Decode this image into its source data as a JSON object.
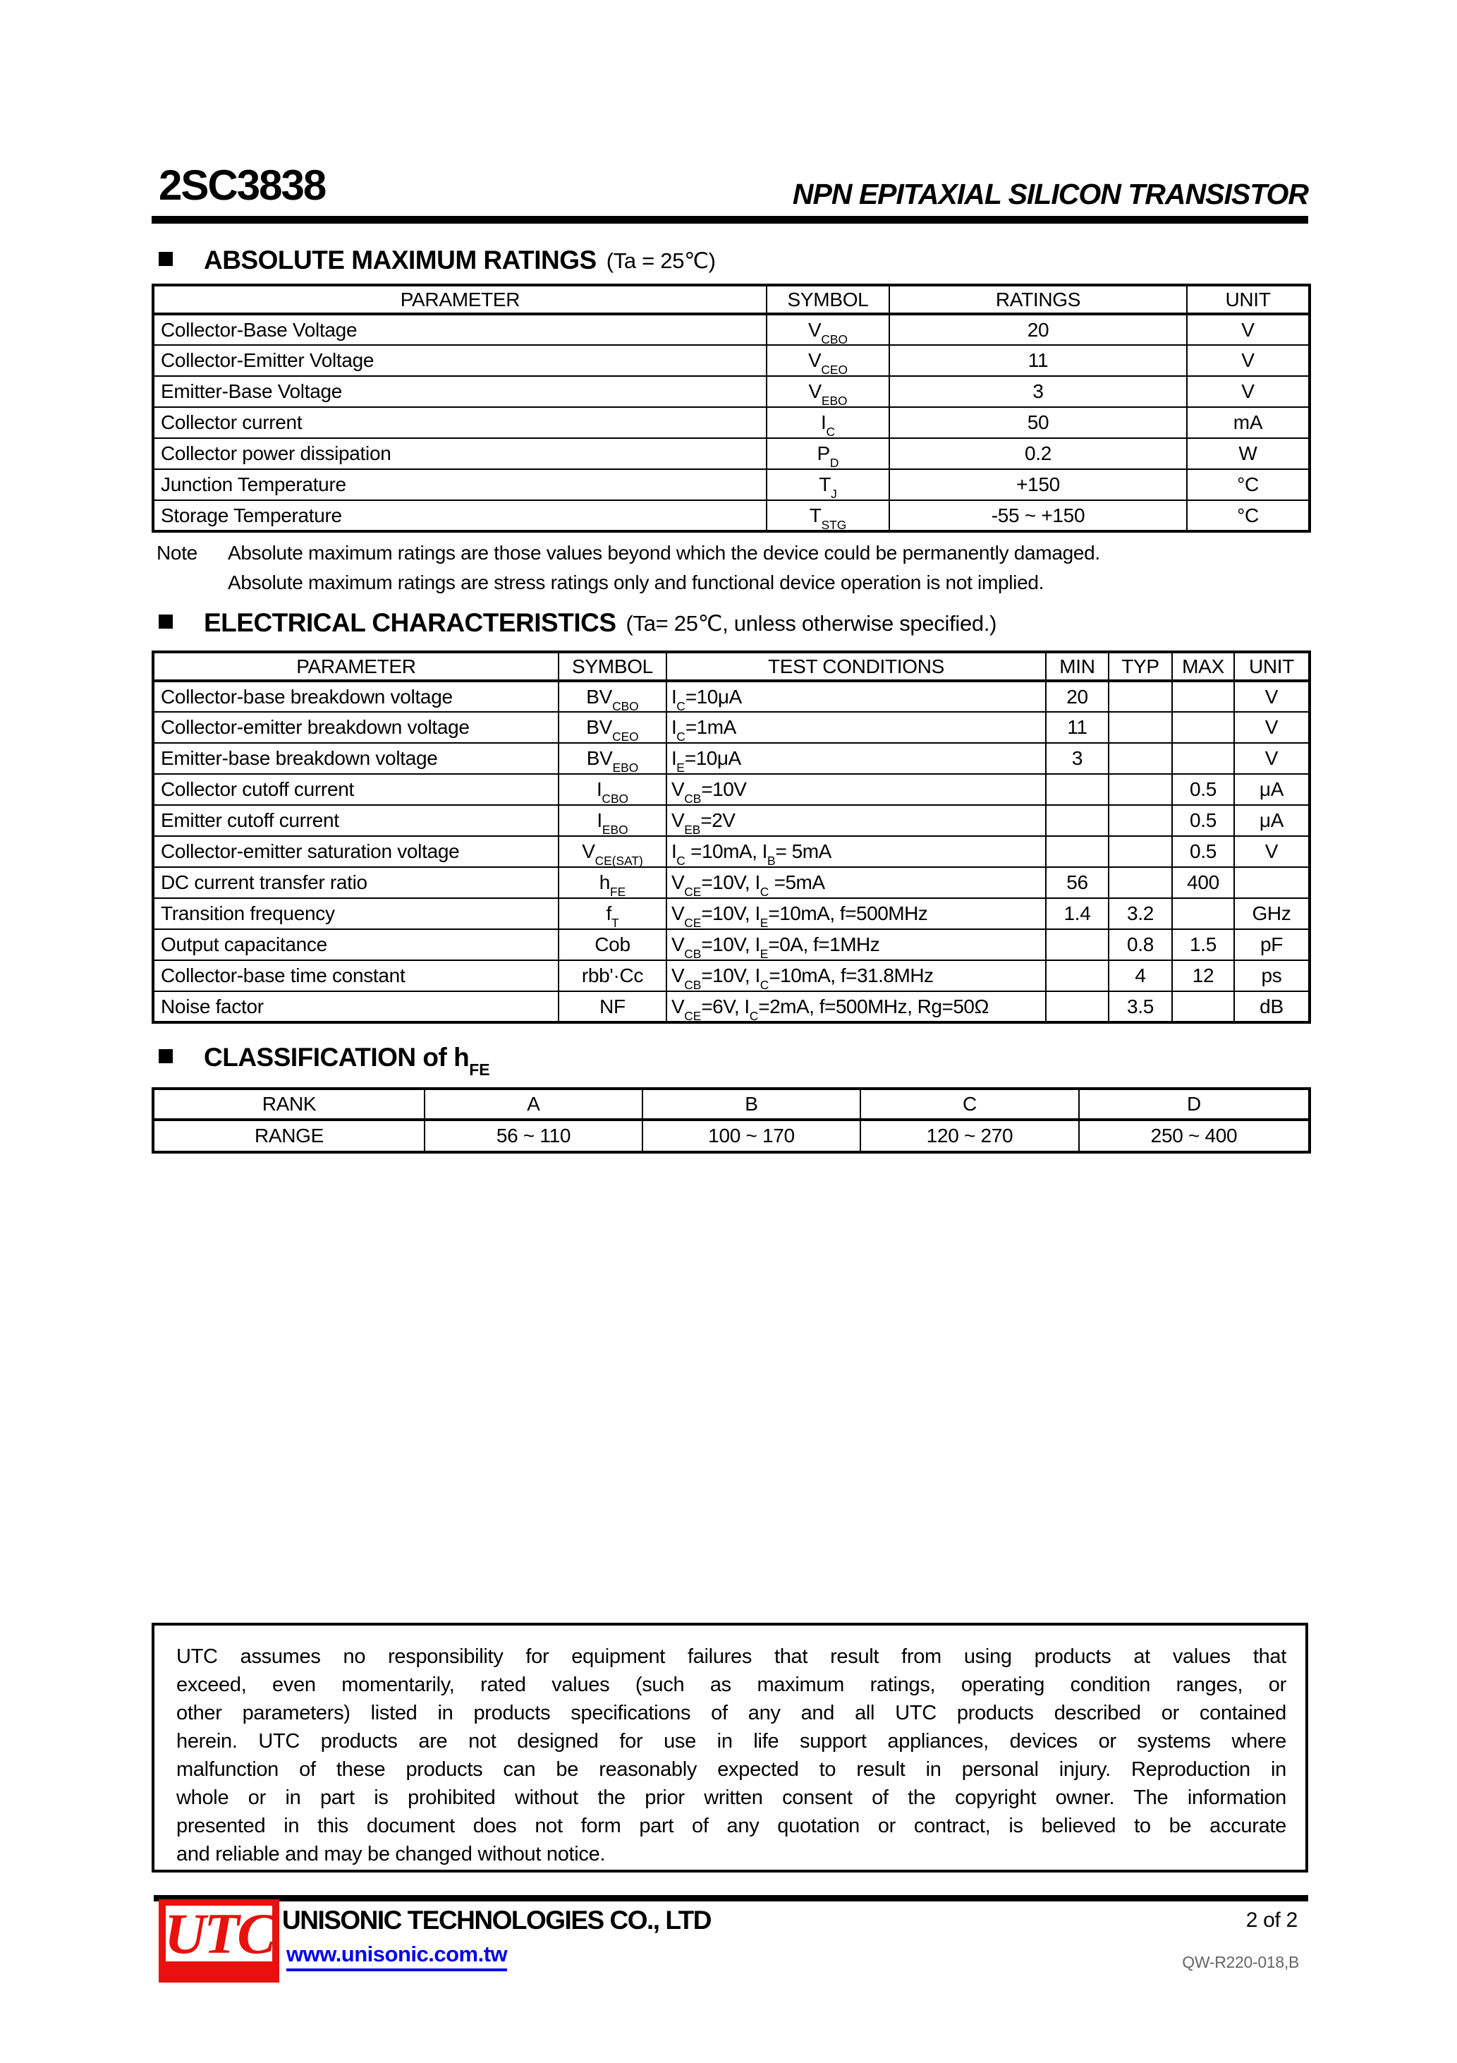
{
  "header": {
    "part_number": "2SC3838",
    "subtitle": "NPN EPITAXIAL SILICON TRANSISTOR"
  },
  "sections": {
    "abs_max": {
      "title": "ABSOLUTE MAXIMUM RATINGS",
      "condition": "(Ta = 25℃)",
      "table": {
        "head": [
          "PARAMETER",
          "SYMBOL",
          "RATINGS",
          "UNIT"
        ],
        "rows": [
          [
            "Collector-Base Voltage",
            "V_{CBO}",
            "20",
            "V"
          ],
          [
            "Collector-Emitter Voltage",
            "V_{CEO}",
            "11",
            "V"
          ],
          [
            "Emitter-Base Voltage",
            "V_{EBO}",
            "3",
            "V"
          ],
          [
            "Collector current",
            "I_{C}",
            "50",
            "mA"
          ],
          [
            "Collector power dissipation",
            "P_{D}",
            "0.2",
            "W"
          ],
          [
            "Junction Temperature",
            "T_{J}",
            "+150",
            "°C"
          ],
          [
            "Storage Temperature",
            "T_{STG}",
            "-55 ~ +150",
            "°C"
          ]
        ]
      },
      "note_label": "Note",
      "note_lines": [
        "Absolute maximum ratings are those values beyond which the device could be permanently damaged.",
        "Absolute maximum ratings are stress ratings only and functional device operation is not implied."
      ]
    },
    "elec": {
      "title": "ELECTRICAL CHARACTERISTICS",
      "condition": "(Ta= 25℃, unless otherwise specified.)",
      "table": {
        "head": [
          "PARAMETER",
          "SYMBOL",
          "TEST CONDITIONS",
          "MIN",
          "TYP",
          "MAX",
          "UNIT"
        ],
        "rows": [
          [
            "Collector-base breakdown voltage",
            "BV_{CBO}",
            "I_{C}=10μA",
            "20",
            "",
            "",
            "V"
          ],
          [
            "Collector-emitter breakdown voltage",
            "BV_{CEO}",
            "I_{C}=1mA",
            "11",
            "",
            "",
            "V"
          ],
          [
            "Emitter-base breakdown voltage",
            "BV_{EBO}",
            "I_{E}=10μA",
            "3",
            "",
            "",
            "V"
          ],
          [
            "Collector cutoff current",
            "I_{CBO}",
            "V_{CB}=10V",
            "",
            "",
            "0.5",
            "μA"
          ],
          [
            "Emitter cutoff current",
            "I_{EBO}",
            "V_{EB}=2V",
            "",
            "",
            "0.5",
            "μA"
          ],
          [
            "Collector-emitter saturation voltage",
            "V_{CE(SAT)}",
            "I_{C} =10mA, I_{B}= 5mA",
            "",
            "",
            "0.5",
            "V"
          ],
          [
            "DC current transfer ratio",
            "h_{FE}",
            "V_{CE}=10V, I_{C} =5mA",
            "56",
            "",
            "400",
            ""
          ],
          [
            "Transition frequency",
            "f_{T}",
            "V_{CE}=10V, I_{E}=10mA, f=500MHz",
            "1.4",
            "3.2",
            "",
            "GHz"
          ],
          [
            "Output capacitance",
            "Cob",
            "V_{CB}=10V, I_{E}=0A, f=1MHz",
            "",
            "0.8",
            "1.5",
            "pF"
          ],
          [
            "Collector-base time constant",
            "rbb'·Cc",
            "V_{CB}=10V, I_{C}=10mA, f=31.8MHz",
            "",
            "4",
            "12",
            "ps"
          ],
          [
            "Noise factor",
            "NF",
            "V_{CE}=6V, I_{C}=2mA, f=500MHz, Rg=50Ω",
            "",
            "3.5",
            "",
            "dB"
          ]
        ]
      }
    },
    "classification": {
      "title": "CLASSIFICATION of h_{FE}",
      "table": {
        "head": [
          "RANK",
          "A",
          "B",
          "C",
          "D"
        ],
        "rows": [
          [
            "RANGE",
            "56 ~ 110",
            "100 ~ 170",
            "120 ~ 270",
            "250 ~ 400"
          ]
        ]
      }
    }
  },
  "disclaimer": {
    "lines": [
      "UTC assumes no responsibility for equipment failures that result from using products at values that",
      "exceed, even momentarily, rated values (such as maximum ratings, operating condition ranges, or",
      "other parameters) listed in products specifications of any and all UTC products described or contained",
      "herein. UTC products are not designed for use in life support appliances, devices or systems where",
      "malfunction of these products can be reasonably expected to result in personal injury. Reproduction in",
      "whole or in part is prohibited without the prior written consent of the copyright owner. The information",
      "presented in this document does not form part of any quotation or contract, is believed to be accurate",
      "and reliable and may be changed without notice."
    ]
  },
  "footer": {
    "logo_text": "UTC",
    "company": "UNISONIC TECHNOLOGIES CO., LTD",
    "website": "www.unisonic.com.tw",
    "page": "2 of 2",
    "doc_number": "QW-R220-018,B",
    "colors": {
      "logo_red": "#e8110d",
      "link_blue": "#0000ee"
    }
  }
}
